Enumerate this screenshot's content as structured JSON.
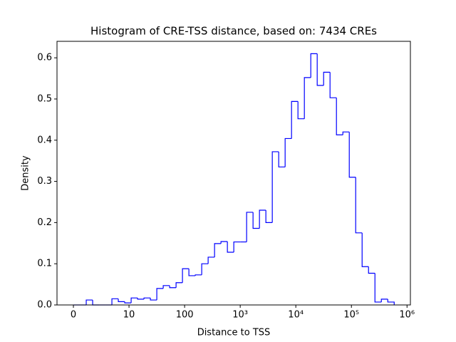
{
  "chart_data": {
    "type": "histogram",
    "title": "Histogram of CRE-TSS distance, based on: 7434 CREs",
    "x_label": "Distance to TSS",
    "y_label": "Density",
    "x_scale": "symlog",
    "linthresh": 10,
    "color": "#0000ff",
    "bins": [
      0,
      1.154,
      2.308,
      3.462,
      4.615,
      5.769,
      6.923,
      8.077,
      9.231,
      10.93,
      14.25,
      18.59,
      24.24,
      31.62,
      41.25,
      53.8,
      70.2,
      91.5,
      119.4,
      155.7,
      203.1,
      264.9,
      345.6,
      450.7,
      587.9,
      766.8,
      1000,
      1304,
      1701,
      2219,
      2894,
      3775,
      4924,
      6423,
      8377,
      10927,
      14251,
      18590,
      24245,
      31623,
      41246,
      53798,
      70170,
      91524,
      119378,
      155707,
      203092,
      264896,
      345511,
      450661,
      587811
    ],
    "values": [
      0,
      0,
      0.012,
      0,
      0,
      0,
      0.015,
      0.008,
      0.005,
      0.017,
      0.014,
      0.017,
      0.012,
      0.04,
      0.047,
      0.042,
      0.054,
      0.088,
      0.071,
      0.073,
      0.1,
      0.116,
      0.149,
      0.154,
      0.128,
      0.153,
      0.153,
      0.225,
      0.186,
      0.23,
      0.2,
      0.372,
      0.335,
      0.404,
      0.494,
      0.452,
      0.552,
      0.61,
      0.533,
      0.565,
      0.503,
      0.413,
      0.42,
      0.31,
      0.175,
      0.093,
      0.077,
      0.007,
      0.014,
      0.007
    ],
    "xlim": [
      -2.95,
      1150000
    ],
    "xticks": [
      0,
      10,
      100,
      {
        "value": 1000,
        "label": "10³"
      },
      {
        "value": 10000,
        "label": "10⁴"
      },
      {
        "value": 100000,
        "label": "10⁵"
      },
      {
        "value": 1000000,
        "label": "10⁶"
      }
    ],
    "ylim": [
      0,
      0.64
    ],
    "yticks": [
      {
        "value": 0,
        "label": "0.0"
      },
      0.1,
      0.2,
      0.3,
      0.4,
      0.5,
      0.6
    ]
  }
}
